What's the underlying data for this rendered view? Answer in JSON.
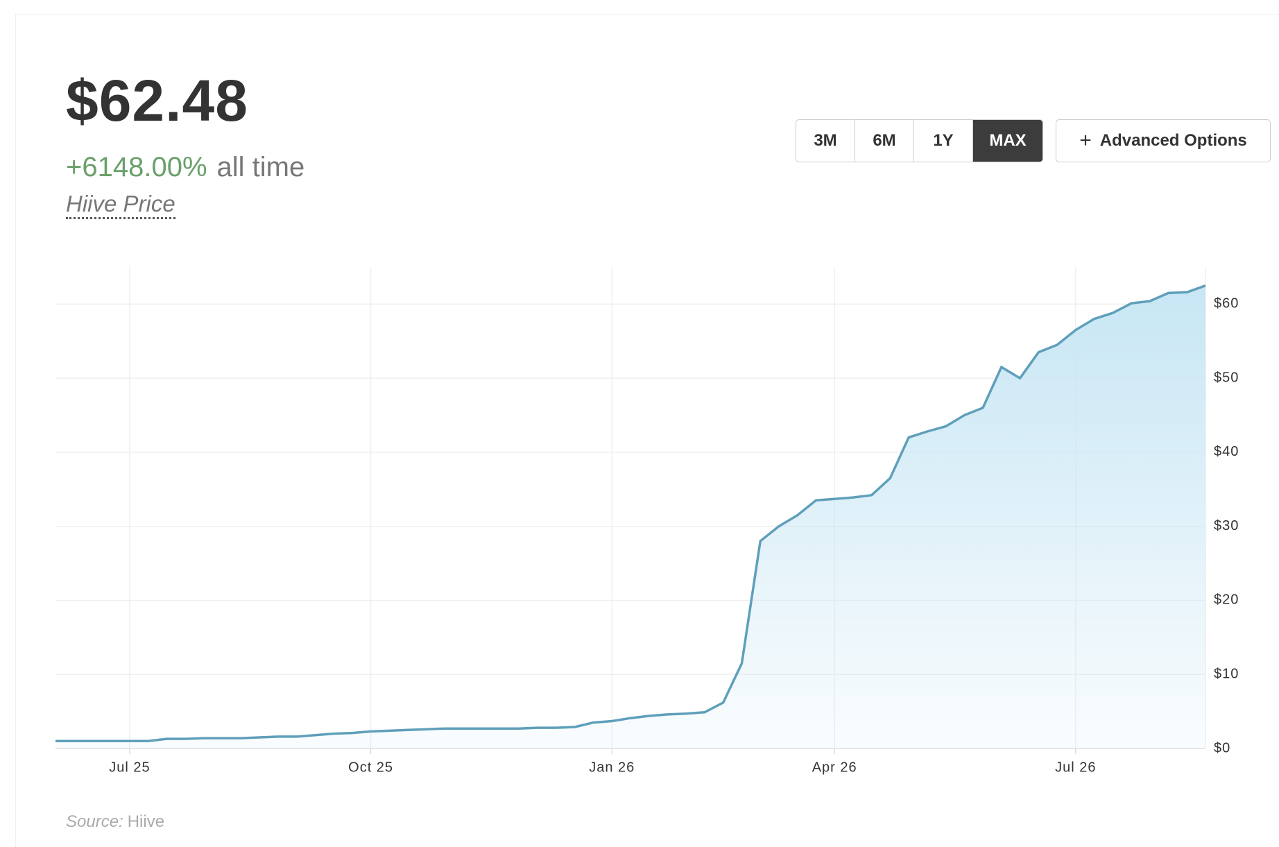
{
  "header": {
    "price": "$62.48",
    "change": "+6148.00%",
    "change_period": "all time",
    "subtitle": "Hiive Price"
  },
  "controls": {
    "ranges": [
      "3M",
      "6M",
      "1Y",
      "MAX"
    ],
    "active": "MAX",
    "advanced": "Advanced Options"
  },
  "chart_data": {
    "type": "line",
    "categories": [
      null,
      null,
      null,
      null,
      "Jul 25",
      null,
      null,
      null,
      null,
      null,
      null,
      null,
      null,
      null,
      null,
      null,
      null,
      "Oct 25",
      null,
      null,
      null,
      null,
      null,
      null,
      null,
      null,
      null,
      null,
      null,
      null,
      "Jan 26",
      null,
      null,
      null,
      null,
      null,
      null,
      null,
      null,
      null,
      null,
      null,
      "Apr 26",
      null,
      null,
      null,
      null,
      null,
      null,
      null,
      null,
      null,
      null,
      null,
      null,
      "Jul 26",
      null,
      null,
      null,
      null,
      null,
      null,
      null
    ],
    "values": [
      1.0,
      1.0,
      1.0,
      1.0,
      1.0,
      1.0,
      1.3,
      1.3,
      1.4,
      1.4,
      1.4,
      1.5,
      1.6,
      1.6,
      1.8,
      2.0,
      2.1,
      2.3,
      2.4,
      2.5,
      2.6,
      2.7,
      2.7,
      2.7,
      2.7,
      2.7,
      2.8,
      2.8,
      2.9,
      3.5,
      3.7,
      4.1,
      4.4,
      4.6,
      4.7,
      4.9,
      6.2,
      11.5,
      28.0,
      30.0,
      31.5,
      33.5,
      33.7,
      33.9,
      34.2,
      36.5,
      42.0,
      42.8,
      43.5,
      45.0,
      46.0,
      51.5,
      50.0,
      53.5,
      54.5,
      56.5,
      58.0,
      58.8,
      60.1,
      60.4,
      61.5,
      61.6,
      62.5
    ],
    "color": "#5f9fba",
    "ylim": [
      0,
      65
    ],
    "yticks": [
      {
        "value": 0,
        "label": "$0"
      },
      {
        "value": 10,
        "label": "$10"
      },
      {
        "value": 20,
        "label": "$20"
      },
      {
        "value": 30,
        "label": "$30"
      },
      {
        "value": 40,
        "label": "$40"
      },
      {
        "value": 50,
        "label": "$50"
      },
      {
        "value": 60,
        "label": "$60"
      }
    ],
    "grid": true
  },
  "source": {
    "label": "Source:",
    "name": "Hiive"
  }
}
